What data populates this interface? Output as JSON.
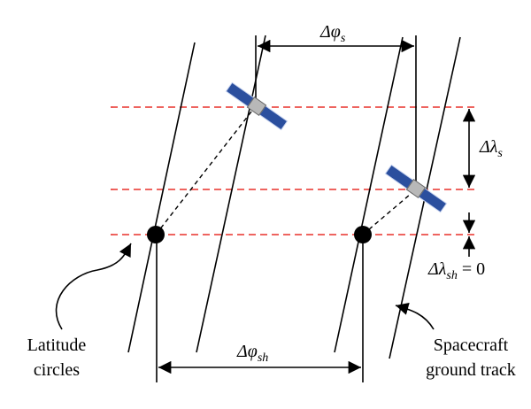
{
  "labels": {
    "delta_phi_s": {
      "symbol": "Δφ",
      "subscript": "s"
    },
    "delta_lambda_s": {
      "symbol": "Δλ",
      "subscript": "s"
    },
    "delta_lambda_sh": {
      "symbol": "Δλ",
      "subscript": "sh",
      "suffix": " = 0"
    },
    "delta_phi_sh": {
      "symbol": "Δφ",
      "subscript": "sh"
    },
    "latitude_circles": [
      "Latitude",
      "circles"
    ],
    "ground_track": [
      "Spacecraft",
      "ground track"
    ]
  }
}
